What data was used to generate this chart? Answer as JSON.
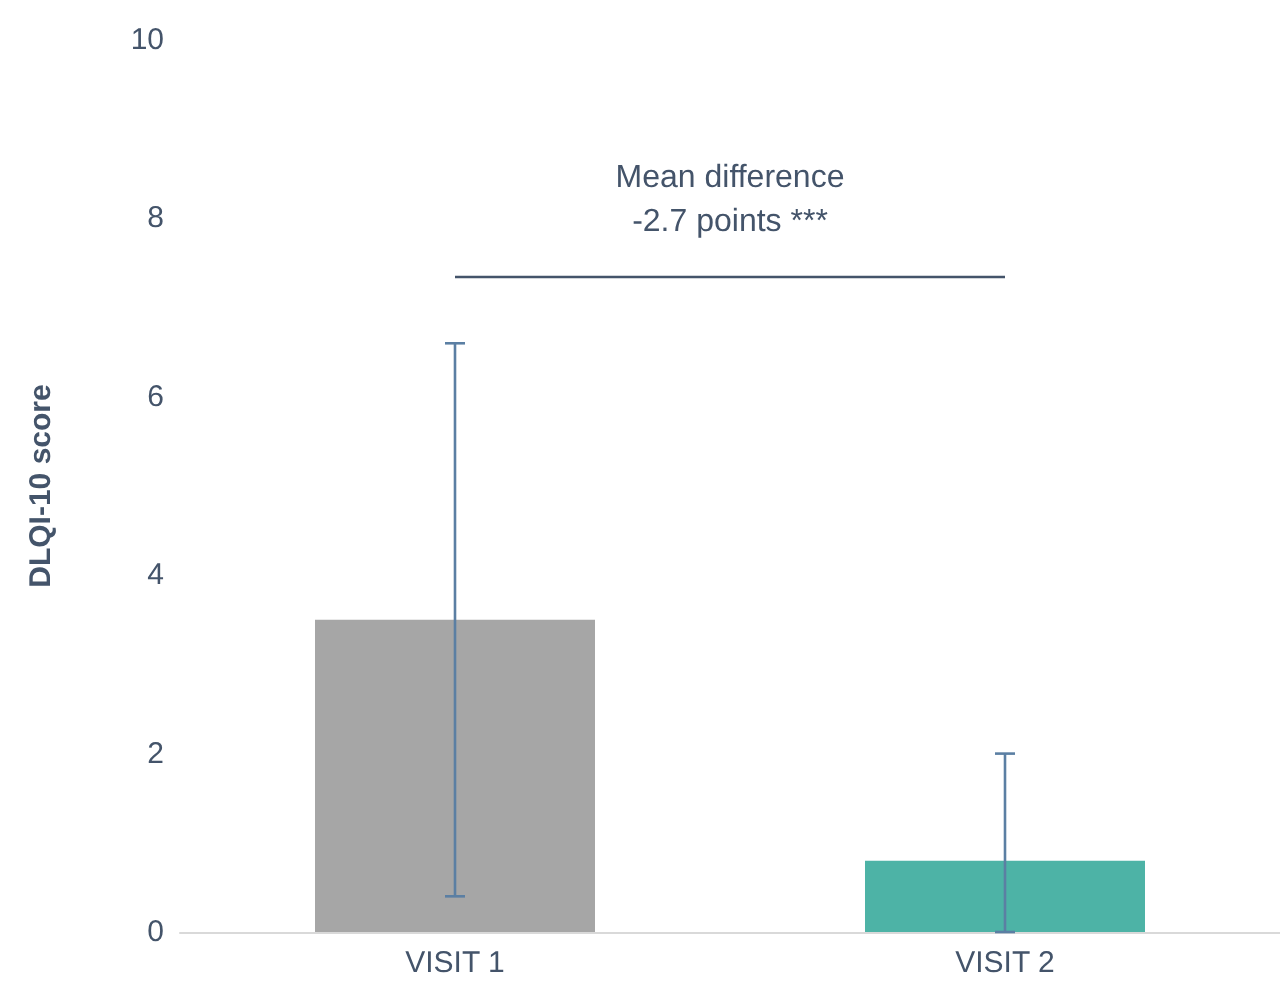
{
  "chart_data": {
    "type": "bar",
    "ylabel": "DLQI-10 score",
    "categories": [
      "VISIT 1",
      "VISIT 2"
    ],
    "values": [
      3.5,
      0.8
    ],
    "colors": [
      "#a6a6a6",
      "#4db3a6"
    ],
    "errors": [
      [
        0.4,
        6.6
      ],
      [
        0,
        2.0
      ]
    ],
    "ylim": [
      0,
      10
    ],
    "yticks": [
      0,
      2,
      4,
      6,
      8,
      10
    ],
    "grid": false,
    "ref_lines": [
      {
        "axis": "y",
        "value": 7.35,
        "label": "Mean difference\n-2.7 points ***",
        "color": "#44546a"
      }
    ]
  }
}
